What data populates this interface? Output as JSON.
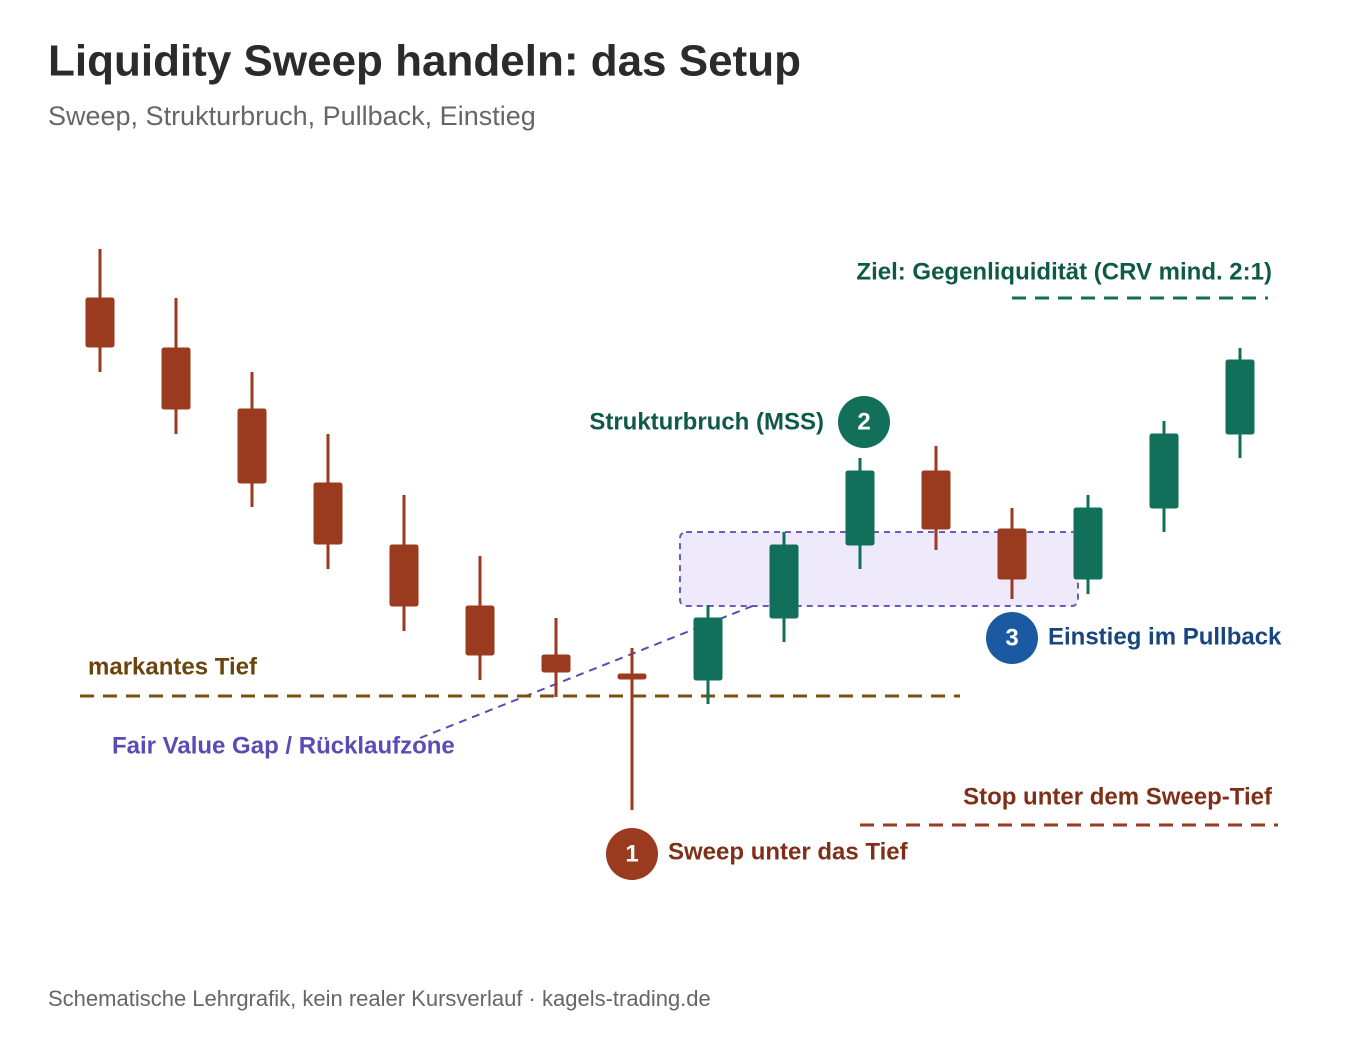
{
  "header": {
    "title": "Liquidity Sweep handeln: das Setup",
    "subtitle": "Sweep, Strukturbruch, Pullback, Einstieg"
  },
  "annotations": {
    "target": "Ziel: Gegenliquidität (CRV mind. 2:1)",
    "mss": "Strukturbruch (MSS)",
    "entry": "Einstieg im Pullback",
    "low": "markantes Tief",
    "fvg": "Fair Value Gap / Rücklaufzone",
    "stop": "Stop unter dem Sweep-Tief",
    "sweep": "Sweep unter das Tief"
  },
  "steps": [
    "1",
    "2",
    "3"
  ],
  "footer": "Schematische Lehrgrafik, kein realer Kursverlauf · kagels-trading.de"
}
